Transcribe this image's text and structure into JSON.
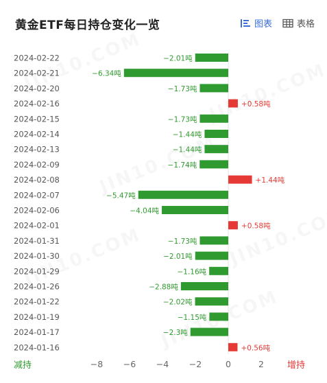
{
  "header": {
    "title": "黄金ETF每日持仓变化一览",
    "view_chart_label": "图表",
    "view_table_label": "表格"
  },
  "colors": {
    "decrease": "#2f9a2f",
    "increase": "#e53935",
    "accent": "#3b6fd8"
  },
  "watermark": "JIN10.COM",
  "footer": {
    "decrease_label": "减持",
    "increase_label": "增持"
  },
  "chart_data": {
    "type": "bar",
    "orientation": "horizontal",
    "title": "黄金ETF每日持仓变化一览",
    "unit": "吨",
    "categories": [
      "2024-02-22",
      "2024-02-21",
      "2024-02-20",
      "2024-02-16",
      "2024-02-15",
      "2024-02-14",
      "2024-02-13",
      "2024-02-09",
      "2024-02-08",
      "2024-02-07",
      "2024-02-06",
      "2024-02-01",
      "2024-01-31",
      "2024-01-30",
      "2024-01-29",
      "2024-01-26",
      "2024-01-22",
      "2024-01-19",
      "2024-01-17",
      "2024-01-16"
    ],
    "values": [
      -2.01,
      -6.34,
      -1.73,
      0.58,
      -1.73,
      -1.44,
      -1.44,
      -1.74,
      1.44,
      -5.47,
      -4.04,
      0.58,
      -1.73,
      -2.01,
      -1.16,
      -2.88,
      -2.02,
      -1.15,
      -2.3,
      0.56
    ],
    "value_labels": [
      "−2.01吨",
      "−6.34吨",
      "−1.73吨",
      "+0.58吨",
      "−1.73吨",
      "−1.44吨",
      "−1.44吨",
      "−1.74吨",
      "+1.44吨",
      "−5.47吨",
      "−4.04吨",
      "+0.58吨",
      "−1.73吨",
      "−2.01吨",
      "−1.16吨",
      "−2.88吨",
      "−2.02吨",
      "−1.15吨",
      "−2.3吨",
      "+0.56吨"
    ],
    "x_ticks": [
      -8,
      -6,
      -4,
      -2,
      0,
      2
    ],
    "x_tick_labels": [
      "−8",
      "−6",
      "−4",
      "−2",
      "0",
      "2"
    ],
    "xlim": [
      -8.7,
      3.2
    ],
    "grid": false,
    "legend": "none"
  }
}
